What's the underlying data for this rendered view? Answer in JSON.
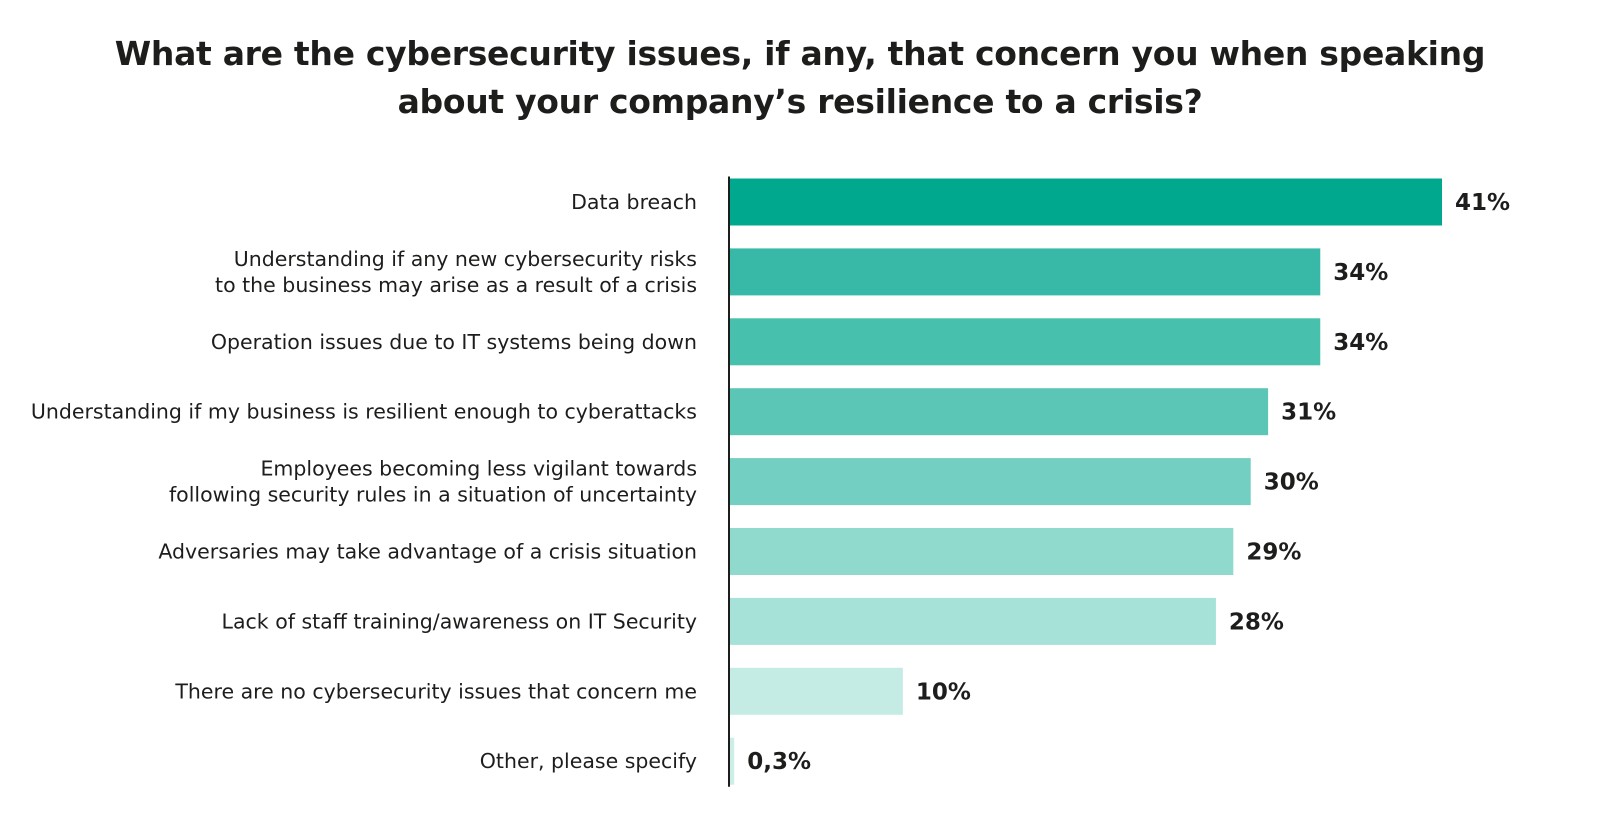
{
  "chart_data": {
    "type": "bar",
    "orientation": "horizontal",
    "title": "What are the cybersecurity issues, if any, that concern you when speaking about your company’s resilience to a crisis?",
    "title_lines": [
      "What are the cybersecurity issues, if any, that concern you when speaking",
      "about your company’s resilience to a crisis?"
    ],
    "categories": [
      [
        "Data breach"
      ],
      [
        "Understanding if any new cybersecurity risks",
        "to the business may arise as a result of a crisis"
      ],
      [
        "Operation issues due to IT systems being down"
      ],
      [
        "Understanding if my business is resilient enough to cyberattacks"
      ],
      [
        "Employees becoming less vigilant towards",
        "following security rules in a situation of uncertainty"
      ],
      [
        "Adversaries may take advantage of a crisis situation"
      ],
      [
        "Lack of staff training/awareness on IT Security"
      ],
      [
        "There are no cybersecurity issues that concern me"
      ],
      [
        "Other, please specify"
      ]
    ],
    "values": [
      41,
      34,
      34,
      31,
      30,
      29,
      28,
      10,
      0.3
    ],
    "value_labels": [
      "41%",
      "34%",
      "34%",
      "31%",
      "30%",
      "29%",
      "28%",
      "10%",
      "0,3%"
    ],
    "bar_colors": [
      "#00a88e",
      "#38b9a8",
      "#47c0ae",
      "#5bc6b6",
      "#73cfc1",
      "#8fdacd",
      "#a6e2d8",
      "#c4ece5",
      "#cdeee8"
    ],
    "axis_color": "#1d1d1b",
    "xlim": [
      0,
      41
    ],
    "grid": false,
    "legend": "none"
  }
}
